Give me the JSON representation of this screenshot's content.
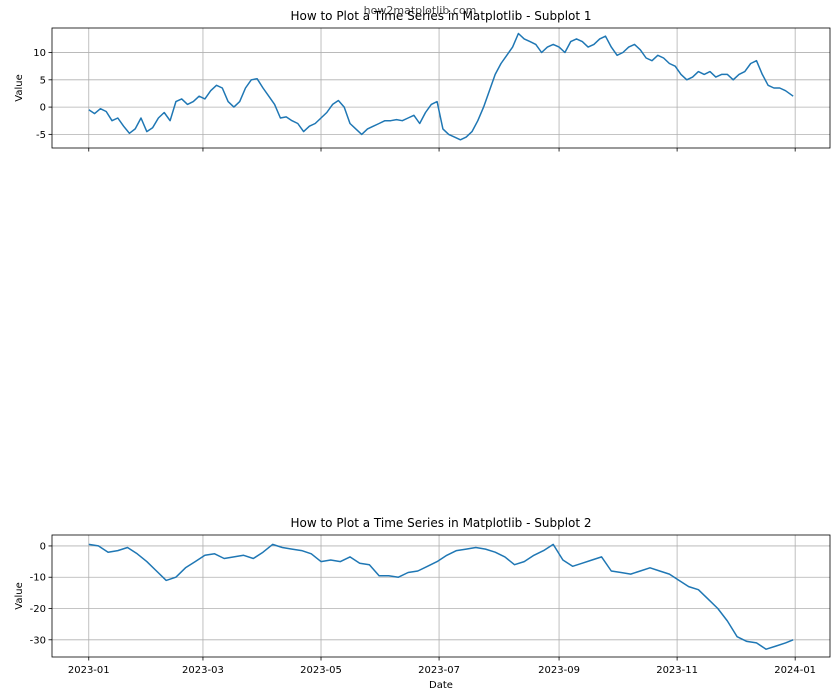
{
  "watermark": "how2matplotlib.com",
  "chart_data": [
    {
      "type": "line",
      "title": "How to Plot a Time Series in Matplotlib - Subplot 1",
      "xlabel": "",
      "ylabel": "Value",
      "xlim": [
        "2022-12-13",
        "2024-01-19"
      ],
      "ylim": [
        -7.5,
        14.5
      ],
      "yticks": [
        -5,
        0,
        5,
        10
      ],
      "ytick_labels": [
        "-5",
        "0",
        "5",
        "10"
      ],
      "xticks": [
        "2023-01-01",
        "2023-03-01",
        "2023-05-01",
        "2023-07-01",
        "2023-09-01",
        "2023-11-01",
        "2024-01-01"
      ],
      "xtick_labels": [],
      "grid": true,
      "color": "#1f77b4",
      "series": [
        {
          "x": [
            "2023-01-01",
            "2023-01-04",
            "2023-01-07",
            "2023-01-10",
            "2023-01-13",
            "2023-01-16",
            "2023-01-19",
            "2023-01-22",
            "2023-01-25",
            "2023-01-28",
            "2023-01-31",
            "2023-02-03",
            "2023-02-06",
            "2023-02-09",
            "2023-02-12",
            "2023-02-15",
            "2023-02-18",
            "2023-02-21",
            "2023-02-24",
            "2023-02-27",
            "2023-03-02",
            "2023-03-05",
            "2023-03-08",
            "2023-03-11",
            "2023-03-14",
            "2023-03-17",
            "2023-03-20",
            "2023-03-23",
            "2023-03-26",
            "2023-03-29",
            "2023-04-01",
            "2023-04-04",
            "2023-04-07",
            "2023-04-10",
            "2023-04-13",
            "2023-04-16",
            "2023-04-19",
            "2023-04-22",
            "2023-04-25",
            "2023-04-28",
            "2023-05-01",
            "2023-05-04",
            "2023-05-07",
            "2023-05-10",
            "2023-05-13",
            "2023-05-16",
            "2023-05-19",
            "2023-05-22",
            "2023-05-25",
            "2023-05-28",
            "2023-05-31",
            "2023-06-03",
            "2023-06-06",
            "2023-06-09",
            "2023-06-12",
            "2023-06-15",
            "2023-06-18",
            "2023-06-21",
            "2023-06-24",
            "2023-06-27",
            "2023-06-30",
            "2023-07-03",
            "2023-07-06",
            "2023-07-09",
            "2023-07-12",
            "2023-07-15",
            "2023-07-18",
            "2023-07-21",
            "2023-07-24",
            "2023-07-27",
            "2023-07-30",
            "2023-08-02",
            "2023-08-05",
            "2023-08-08",
            "2023-08-11",
            "2023-08-14",
            "2023-08-17",
            "2023-08-20",
            "2023-08-23",
            "2023-08-26",
            "2023-08-29",
            "2023-09-01",
            "2023-09-04",
            "2023-09-07",
            "2023-09-10",
            "2023-09-13",
            "2023-09-16",
            "2023-09-19",
            "2023-09-22",
            "2023-09-25",
            "2023-09-28",
            "2023-10-01",
            "2023-10-04",
            "2023-10-07",
            "2023-10-10",
            "2023-10-13",
            "2023-10-16",
            "2023-10-19",
            "2023-10-22",
            "2023-10-25",
            "2023-10-28",
            "2023-10-31",
            "2023-11-03",
            "2023-11-06",
            "2023-11-09",
            "2023-11-12",
            "2023-11-15",
            "2023-11-18",
            "2023-11-21",
            "2023-11-24",
            "2023-11-27",
            "2023-11-30",
            "2023-12-03",
            "2023-12-06",
            "2023-12-09",
            "2023-12-12",
            "2023-12-15",
            "2023-12-18",
            "2023-12-21",
            "2023-12-24",
            "2023-12-27",
            "2023-12-31"
          ],
          "y": [
            -0.5,
            -1.2,
            -0.3,
            -0.8,
            -2.5,
            -2.0,
            -3.5,
            -4.8,
            -4.0,
            -2.0,
            -4.5,
            -3.8,
            -2.0,
            -1.0,
            -2.5,
            1.0,
            1.5,
            0.5,
            1.0,
            2.0,
            1.5,
            3.0,
            4.0,
            3.5,
            1.0,
            0.0,
            1.0,
            3.5,
            5.0,
            5.2,
            3.5,
            2.0,
            0.5,
            -2.0,
            -1.8,
            -2.5,
            -3.0,
            -4.5,
            -3.5,
            -3.0,
            -2.0,
            -1.0,
            0.5,
            1.2,
            0.0,
            -3.0,
            -4.0,
            -5.0,
            -4.0,
            -3.5,
            -3.0,
            -2.5,
            -2.5,
            -2.3,
            -2.5,
            -2.0,
            -1.5,
            -3.0,
            -1.0,
            0.5,
            1.0,
            -4.0,
            -5.0,
            -5.5,
            -6.0,
            -5.5,
            -4.5,
            -2.5,
            0.0,
            3.0,
            6.0,
            8.0,
            9.5,
            11.0,
            13.5,
            12.5,
            12.0,
            11.5,
            10.0,
            11.0,
            11.5,
            11.0,
            10.0,
            12.0,
            12.5,
            12.0,
            11.0,
            11.5,
            12.5,
            13.0,
            11.0,
            9.5,
            10.0,
            11.0,
            11.5,
            10.5,
            9.0,
            8.5,
            9.5,
            9.0,
            8.0,
            7.5,
            6.0,
            5.0,
            5.5,
            6.5,
            6.0,
            6.5,
            5.5,
            6.0,
            6.0,
            5.0,
            6.0,
            6.5,
            8.0,
            8.5,
            6.0,
            4.0,
            3.5,
            3.5,
            3.0,
            2.0
          ]
        }
      ]
    },
    {
      "type": "line",
      "title": "How to Plot a Time Series in Matplotlib - Subplot 2",
      "xlabel": "Date",
      "ylabel": "Value",
      "xlim": [
        "2022-12-13",
        "2024-01-19"
      ],
      "ylim": [
        -35.5,
        3.5
      ],
      "yticks": [
        0,
        -10,
        -20,
        -30
      ],
      "ytick_labels": [
        "0",
        "-10",
        "-20",
        "-30"
      ],
      "xticks": [
        "2023-01-01",
        "2023-03-01",
        "2023-05-01",
        "2023-07-01",
        "2023-09-01",
        "2023-11-01",
        "2024-01-01"
      ],
      "xtick_labels": [
        "2023-01",
        "2023-03",
        "2023-05",
        "2023-07",
        "2023-09",
        "2023-11",
        "2024-01"
      ],
      "grid": true,
      "color": "#1f77b4",
      "series": [
        {
          "x": [
            "2023-01-01",
            "2023-01-06",
            "2023-01-11",
            "2023-01-16",
            "2023-01-21",
            "2023-01-26",
            "2023-01-31",
            "2023-02-05",
            "2023-02-10",
            "2023-02-15",
            "2023-02-20",
            "2023-02-25",
            "2023-03-02",
            "2023-03-07",
            "2023-03-12",
            "2023-03-17",
            "2023-03-22",
            "2023-03-27",
            "2023-04-01",
            "2023-04-06",
            "2023-04-11",
            "2023-04-16",
            "2023-04-21",
            "2023-04-26",
            "2023-05-01",
            "2023-05-06",
            "2023-05-11",
            "2023-05-16",
            "2023-05-21",
            "2023-05-26",
            "2023-05-31",
            "2023-06-05",
            "2023-06-10",
            "2023-06-15",
            "2023-06-20",
            "2023-06-25",
            "2023-06-30",
            "2023-07-05",
            "2023-07-10",
            "2023-07-15",
            "2023-07-20",
            "2023-07-25",
            "2023-07-30",
            "2023-08-04",
            "2023-08-09",
            "2023-08-14",
            "2023-08-19",
            "2023-08-24",
            "2023-08-29",
            "2023-09-03",
            "2023-09-08",
            "2023-09-13",
            "2023-09-18",
            "2023-09-23",
            "2023-09-28",
            "2023-10-03",
            "2023-10-08",
            "2023-10-13",
            "2023-10-18",
            "2023-10-23",
            "2023-10-28",
            "2023-11-02",
            "2023-11-07",
            "2023-11-12",
            "2023-11-17",
            "2023-11-22",
            "2023-11-27",
            "2023-12-02",
            "2023-12-07",
            "2023-12-12",
            "2023-12-17",
            "2023-12-22",
            "2023-12-27",
            "2023-12-31"
          ],
          "y": [
            0.5,
            0.0,
            -2.0,
            -1.5,
            -0.5,
            -2.5,
            -5.0,
            -8.0,
            -11.0,
            -10.0,
            -7.0,
            -5.0,
            -3.0,
            -2.5,
            -4.0,
            -3.5,
            -3.0,
            -4.0,
            -2.0,
            0.5,
            -0.5,
            -1.0,
            -1.5,
            -2.5,
            -5.0,
            -4.5,
            -5.0,
            -3.5,
            -5.5,
            -6.0,
            -9.5,
            -9.5,
            -10.0,
            -8.5,
            -8.0,
            -6.5,
            -5.0,
            -3.0,
            -1.5,
            -1.0,
            -0.5,
            -1.0,
            -2.0,
            -3.5,
            -6.0,
            -5.0,
            -3.0,
            -1.5,
            0.5,
            -4.5,
            -6.5,
            -5.5,
            -4.5,
            -3.5,
            -8.0,
            -8.5,
            -9.0,
            -8.0,
            -7.0,
            -8.0,
            -9.0,
            -11.0,
            -13.0,
            -14.0,
            -17.0,
            -20.0,
            -24.0,
            -29.0,
            -30.5,
            -31.0,
            -33.0,
            -32.0,
            -31.0,
            -30.0
          ]
        }
      ]
    }
  ]
}
